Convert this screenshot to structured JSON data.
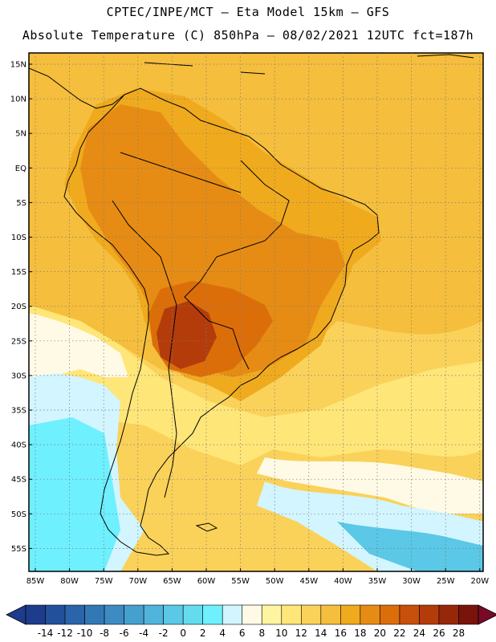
{
  "header": {
    "line1": "CPTEC/INPE/MCT –  Eta Model 15km – GFS",
    "line2": "Absolute Temperature (C) 850hPa – 08/02/2021 12UTC fct=187h"
  },
  "axes": {
    "lat_labels": [
      "15N",
      "10N",
      "5N",
      "EQ",
      "5S",
      "10S",
      "15S",
      "20S",
      "25S",
      "30S",
      "35S",
      "40S",
      "45S",
      "50S",
      "55S"
    ],
    "lon_labels": [
      "85W",
      "80W",
      "75W",
      "70W",
      "65W",
      "60W",
      "55W",
      "50W",
      "45W",
      "40W",
      "35W",
      "30W",
      "25W",
      "20W"
    ]
  },
  "legend": {
    "ticks": [
      "-14",
      "-12",
      "-10",
      "-8",
      "-6",
      "-4",
      "-2",
      "0",
      "2",
      "4",
      "6",
      "8",
      "10",
      "12",
      "14",
      "16",
      "18",
      "20",
      "22",
      "24",
      "26",
      "28"
    ],
    "colors": [
      "#1e3c8c",
      "#23509b",
      "#2a64aa",
      "#3278b4",
      "#3c8cc3",
      "#46a0cd",
      "#50b4dc",
      "#5ac8e6",
      "#64dcf0",
      "#6ef0ff",
      "#d2f5ff",
      "#fffae6",
      "#fff5a0",
      "#ffe678",
      "#fad25a",
      "#f5be3c",
      "#f0aa1e",
      "#e68c14",
      "#dc6e0a",
      "#c8500a",
      "#b43c0a",
      "#96280a",
      "#78140a"
    ],
    "end_left_color": "#1e3c8c",
    "end_right_color": "#780a28"
  },
  "map_colors": {
    "ocean_warm": "#f5be3c",
    "ocean_mid": "#fad25a",
    "land_base": "#f0aa1e",
    "land_hot": "#e68c14",
    "land_hotter": "#dc6e0a",
    "land_hottest": "#b43c0a",
    "cool_1": "#ffe678",
    "cool_2": "#fff5a0",
    "cool_3": "#fffae6",
    "cold_1": "#d2f5ff",
    "cold_2": "#6ef0ff",
    "cold_3": "#5ac8e6",
    "cold_4": "#50b4dc"
  }
}
